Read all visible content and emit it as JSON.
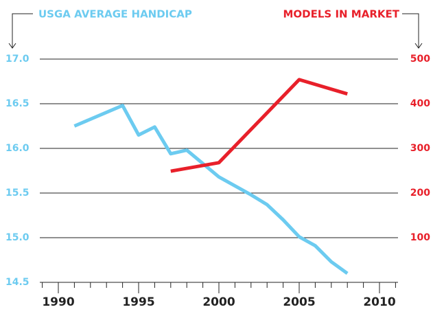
{
  "chart_data": {
    "type": "line",
    "y_label": "USGA AVERAGE HANDICAP",
    "y2_label": "MODELS IN MARKET",
    "xlim": [
      1989,
      2011
    ],
    "xticks": [
      1990,
      1995,
      2000,
      2005,
      2010
    ],
    "xminorticks": [
      1989,
      1990,
      1991,
      1992,
      1993,
      1994,
      1995,
      1996,
      1997,
      1998,
      1999,
      2000,
      2001,
      2002,
      2003,
      2004,
      2005,
      2006,
      2007,
      2008,
      2009,
      2010,
      2011
    ],
    "ylim": [
      14.5,
      17.0
    ],
    "yticks": [
      {
        "value": 17,
        "label": "17.0"
      },
      16.5,
      {
        "value": 16,
        "label": "16.0"
      },
      15.5,
      {
        "value": 15,
        "label": "15.0"
      },
      14.5
    ],
    "y2lim": [
      0,
      500
    ],
    "y2ticks": [
      500,
      400,
      300,
      200,
      100
    ],
    "grid": true,
    "series": [
      {
        "name": "USGA AVERAGE HANDICAP",
        "color": "#6ccbf0",
        "x": [
          1991,
          1994,
          1995,
          1996,
          1997,
          1998,
          1999,
          2000,
          2001,
          2002,
          2003,
          2004,
          2005,
          2006,
          2007,
          2008
        ],
        "values": [
          16.25,
          16.48,
          16.15,
          16.24,
          15.94,
          15.98,
          15.83,
          15.68,
          15.58,
          15.48,
          15.37,
          15.2,
          15.01,
          14.91,
          14.73,
          14.6
        ]
      },
      {
        "name": "MODELS IN MARKET",
        "color": "#e8202a",
        "axis": "y2",
        "x": [
          1997,
          2000,
          2005,
          2008
        ],
        "values": [
          249,
          268,
          454,
          422
        ]
      }
    ]
  }
}
